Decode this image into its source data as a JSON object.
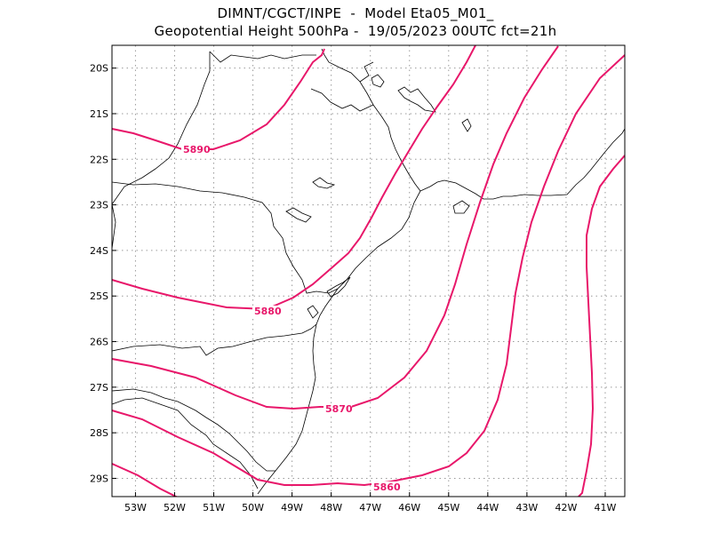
{
  "title_line1": "DIMNT/CGCT/INPE  -  Model Eta05_M01_",
  "title_line2": "Geopotential Height 500hPa -  19/05/2023 00UTC fct=21h",
  "map": {
    "lon_range": [
      -53.6,
      -40.5
    ],
    "lat_range": [
      -29.4,
      -19.5
    ],
    "lat_ticks": [
      "20S",
      "21S",
      "22S",
      "23S",
      "24S",
      "25S",
      "26S",
      "27S",
      "28S",
      "29S"
    ],
    "lon_ticks": [
      "53W",
      "52W",
      "51W",
      "50W",
      "49W",
      "48W",
      "47W",
      "46W",
      "45W",
      "44W",
      "43W",
      "42W",
      "41W"
    ],
    "grid": true,
    "contour_color": "#e8176a",
    "contour_labels": [
      "5890",
      "5880",
      "5870",
      "5860"
    ]
  }
}
